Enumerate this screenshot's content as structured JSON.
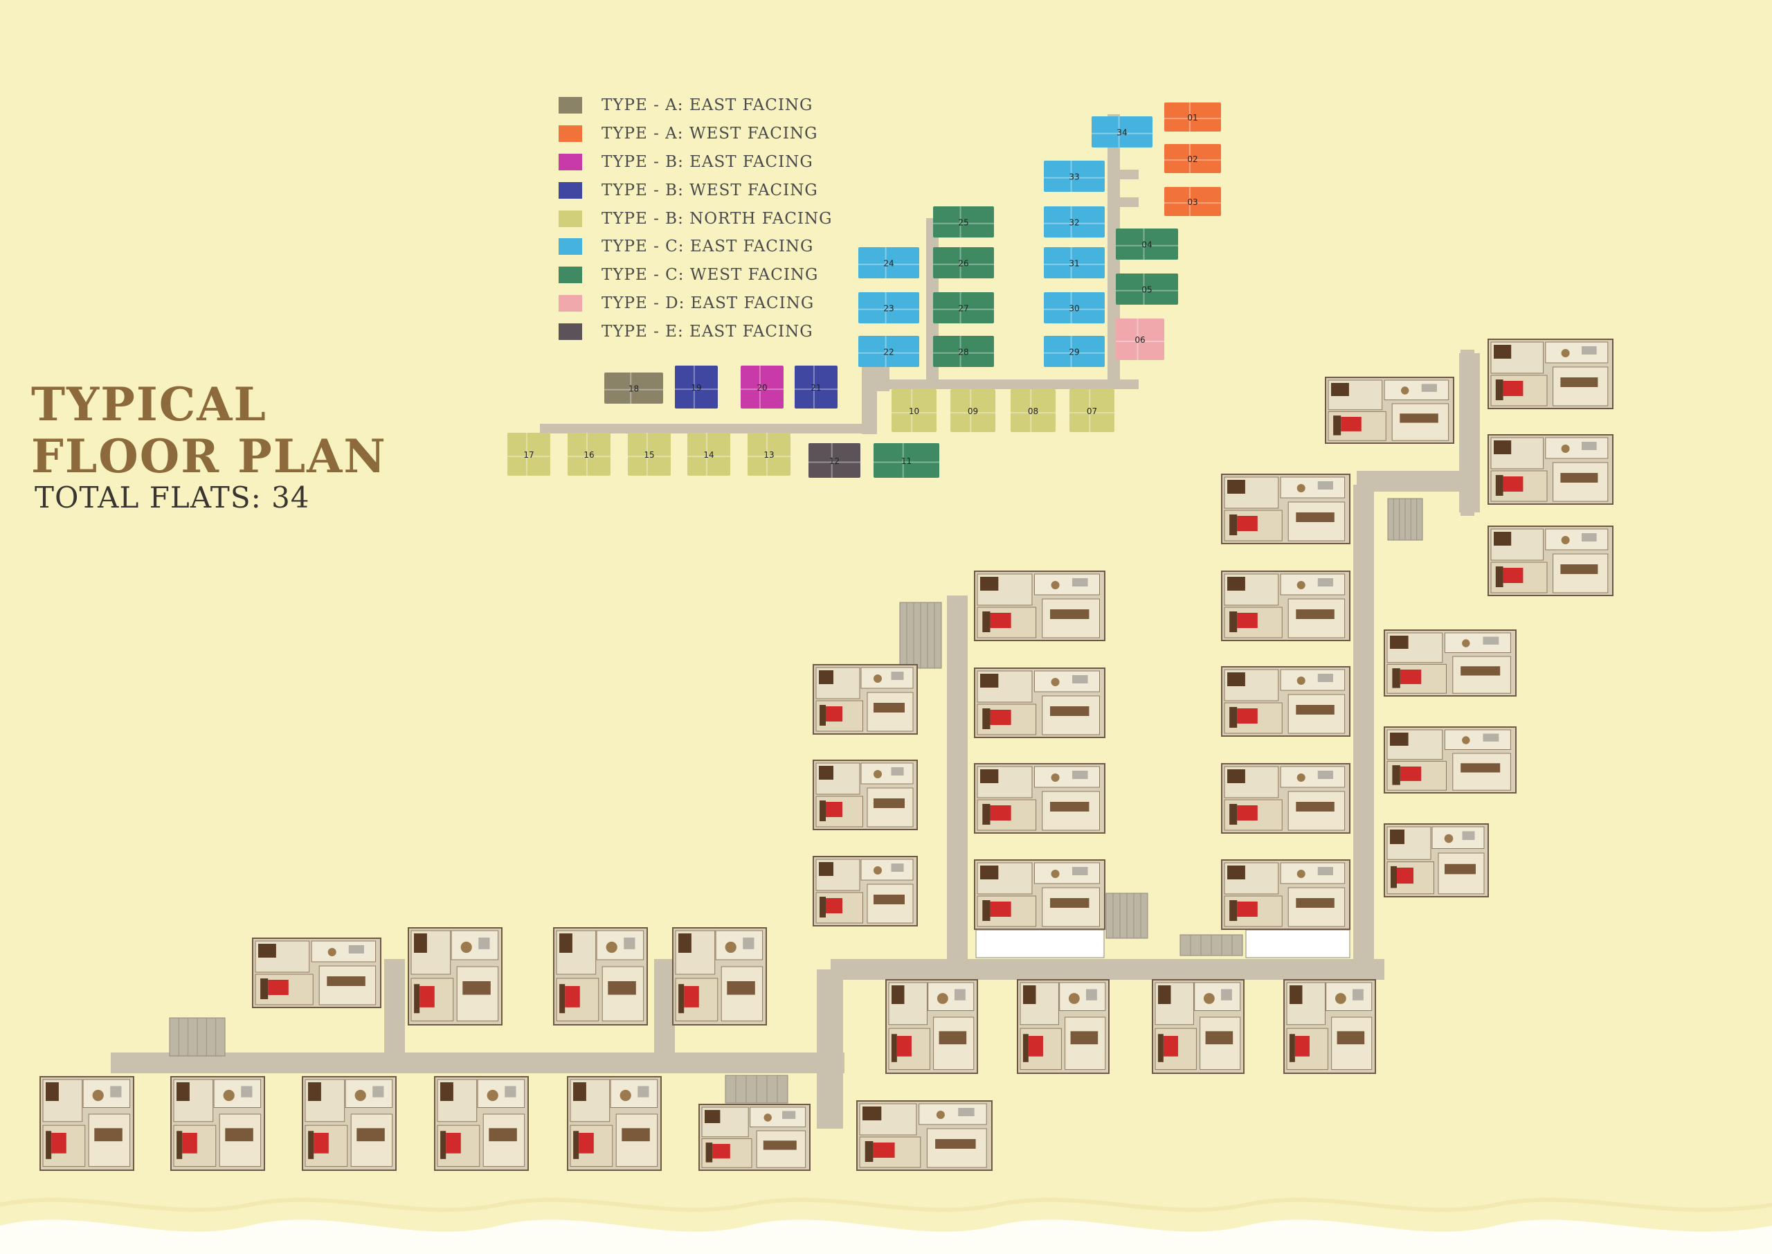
{
  "title": {
    "line1": "TYPICAL",
    "line2": "FLOOR PLAN",
    "total": "TOTAL FLATS: 34"
  },
  "colors": {
    "background": "#f7f2c0",
    "heading": "#8c6a3c",
    "corridor": "#c9c0ad",
    "floor_wood": "#d9cfb6",
    "furniture_dark": "#5a3c25",
    "bed_red": "#d12a2a"
  },
  "legend": [
    {
      "label": "TYPE - A: EAST FACING",
      "color": "#8a8368"
    },
    {
      "label": "TYPE - A: WEST FACING",
      "color": "#f2733a"
    },
    {
      "label": "TYPE - B: EAST FACING",
      "color": "#c83aa8"
    },
    {
      "label": "TYPE - B: WEST FACING",
      "color": "#3f47a0"
    },
    {
      "label": "TYPE - B: NORTH FACING",
      "color": "#d2cf7a"
    },
    {
      "label": "TYPE - C: EAST FACING",
      "color": "#45b3de"
    },
    {
      "label": "TYPE - C: WEST FACING",
      "color": "#3f8a62"
    },
    {
      "label": "TYPE - D: EAST FACING",
      "color": "#f0a8ad"
    },
    {
      "label": "TYPE - E: EAST FACING",
      "color": "#5c5358"
    }
  ],
  "key_plan_units": [
    {
      "no": "01",
      "type": "A-W"
    },
    {
      "no": "02",
      "type": "A-W"
    },
    {
      "no": "03",
      "type": "A-W"
    },
    {
      "no": "04",
      "type": "C-W"
    },
    {
      "no": "05",
      "type": "C-W"
    },
    {
      "no": "06",
      "type": "D-E"
    },
    {
      "no": "07",
      "type": "B-N"
    },
    {
      "no": "08",
      "type": "B-N"
    },
    {
      "no": "09",
      "type": "B-N"
    },
    {
      "no": "10",
      "type": "B-N"
    },
    {
      "no": "11",
      "type": "C-W"
    },
    {
      "no": "12",
      "type": "E-E"
    },
    {
      "no": "13",
      "type": "B-N"
    },
    {
      "no": "14",
      "type": "B-N"
    },
    {
      "no": "15",
      "type": "B-N"
    },
    {
      "no": "16",
      "type": "B-N"
    },
    {
      "no": "17",
      "type": "B-N"
    },
    {
      "no": "18",
      "type": "A-E"
    },
    {
      "no": "19",
      "type": "B-W"
    },
    {
      "no": "20",
      "type": "B-E"
    },
    {
      "no": "21",
      "type": "B-W"
    },
    {
      "no": "22",
      "type": "C-E"
    },
    {
      "no": "23",
      "type": "C-E"
    },
    {
      "no": "24",
      "type": "C-E"
    },
    {
      "no": "25",
      "type": "C-W"
    },
    {
      "no": "26",
      "type": "C-W"
    },
    {
      "no": "27",
      "type": "C-W"
    },
    {
      "no": "28",
      "type": "C-W"
    },
    {
      "no": "29",
      "type": "C-E"
    },
    {
      "no": "30",
      "type": "C-E"
    },
    {
      "no": "31",
      "type": "C-E"
    },
    {
      "no": "32",
      "type": "C-E"
    },
    {
      "no": "33",
      "type": "C-E"
    },
    {
      "no": "34",
      "type": "C-E"
    }
  ]
}
